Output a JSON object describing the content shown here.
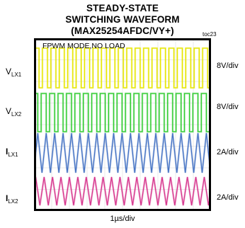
{
  "chart_data": {
    "type": "line",
    "title_lines": [
      "STEADY-STATE",
      "SWITCHING WAVEFORM",
      "(MAX25254AFDC/VY+)"
    ],
    "figure_id": "toc23",
    "annotation": "FPWM MODE,NO LOAD",
    "xlabel": "1µs/div",
    "xdivisions": 10,
    "ydivisions": 8,
    "switching_cycles_shown": 21,
    "grid": true,
    "series": [
      {
        "name_main": "V",
        "name_sub": "LX1",
        "scale": "8V/div",
        "waveform": "square",
        "color": "#e6e600",
        "duty_cycle": 0.6
      },
      {
        "name_main": "V",
        "name_sub": "LX2",
        "scale": "8V/div",
        "waveform": "square",
        "color": "#33cc33",
        "duty_cycle": 0.6
      },
      {
        "name_main": "I",
        "name_sub": "LX1",
        "scale": "2A/div",
        "waveform": "triangle",
        "color": "#4472c4",
        "duty_cycle": 0.5
      },
      {
        "name_main": "I",
        "name_sub": "LX2",
        "scale": "2A/div",
        "waveform": "triangle",
        "color": "#d6338c",
        "duty_cycle": 0.5
      }
    ]
  }
}
